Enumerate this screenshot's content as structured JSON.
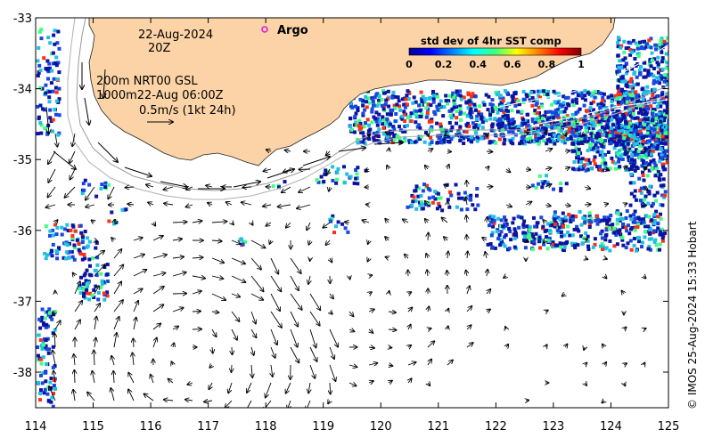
{
  "map": {
    "date": "22-Aug-2024",
    "time": "20Z",
    "argo_label": "Argo",
    "info_line1": "200m  NRT00 GSL",
    "info_line2": "1000m22-Aug 06:00Z",
    "scale_label": "0.5m/s (1kt 24h)",
    "credit": "© IMOS 25-Aug-2024 15:33 Hobart",
    "x_ticks": [
      "114",
      "115",
      "116",
      "117",
      "118",
      "119",
      "120",
      "121",
      "122",
      "123",
      "124",
      "125"
    ],
    "y_ticks": [
      "-33",
      "-34",
      "-35",
      "-36",
      "-37",
      "-38"
    ],
    "colors": {
      "land": "#fcd3a6",
      "ocean": "#ffffff",
      "argo_marker": "#e81ad9",
      "sst_low": "#0a14a0",
      "sst_mid": "#20c0e0",
      "sst_high": "#ff3010"
    }
  },
  "colorbar": {
    "title": "std dev of 4hr SST comp",
    "ticks": [
      "0",
      "0.2",
      "0.4",
      "0.6",
      "0.8",
      "1"
    ],
    "range": [
      0,
      1
    ]
  }
}
